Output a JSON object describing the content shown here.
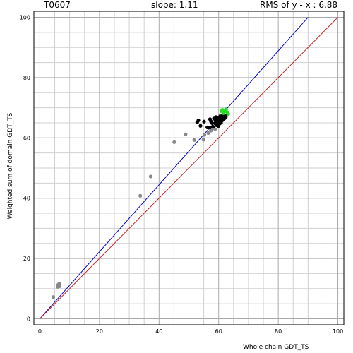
{
  "header": {
    "target": "T0607",
    "slope": "slope: 1.11",
    "rms": "RMS of  y - x : 6.88"
  },
  "chart_data": {
    "type": "scatter",
    "xlabel": "Whole chain GDT_TS",
    "ylabel": "Weighted sum of domain GDT_TS",
    "xlim": [
      -2,
      102
    ],
    "ylim": [
      -2,
      102
    ],
    "xticks": [
      0,
      20,
      40,
      60,
      80,
      100
    ],
    "yticks": [
      0,
      20,
      40,
      60,
      80,
      100
    ],
    "minor_step": 5,
    "grid": true,
    "lines": [
      {
        "name": "",
        "color": "#0000cc",
        "x": [
          0,
          90
        ],
        "y": [
          0,
          100
        ]
      },
      {
        "name": "",
        "color": "#cc2222",
        "x": [
          0,
          100
        ],
        "y": [
          0,
          100
        ]
      }
    ],
    "series": [
      {
        "name": "",
        "color": "#888888",
        "points": [
          [
            4.5,
            7.2
          ],
          [
            6.0,
            10.6
          ],
          [
            6.1,
            11.2
          ],
          [
            6.3,
            10.9
          ],
          [
            6.5,
            11.6
          ],
          [
            6.6,
            10.8
          ],
          [
            33.7,
            40.8
          ],
          [
            37.2,
            47.2
          ],
          [
            45.1,
            58.6
          ],
          [
            48.9,
            61.2
          ],
          [
            51.8,
            59.3
          ],
          [
            54.9,
            59.4
          ],
          [
            55.2,
            61.0
          ],
          [
            56.5,
            61.6
          ],
          [
            57.4,
            62.4
          ],
          [
            57.9,
            63.2
          ],
          [
            58.8,
            62.9
          ]
        ]
      },
      {
        "name": "",
        "color": "#000000",
        "points": [
          [
            52.8,
            65.2
          ],
          [
            53.2,
            65.8
          ],
          [
            53.9,
            64.0
          ],
          [
            55.1,
            65.4
          ],
          [
            56.2,
            63.5
          ],
          [
            57.0,
            63.4
          ],
          [
            57.1,
            66.2
          ],
          [
            57.4,
            65.5
          ],
          [
            57.8,
            64.9
          ],
          [
            58.1,
            63.7
          ],
          [
            58.4,
            66.4
          ],
          [
            58.8,
            64.8
          ],
          [
            59.0,
            65.6
          ],
          [
            59.1,
            66.9
          ],
          [
            59.3,
            64.2
          ],
          [
            59.5,
            65.1
          ],
          [
            59.7,
            66.0
          ],
          [
            59.9,
            63.9
          ],
          [
            60.0,
            66.6
          ],
          [
            60.2,
            64.6
          ],
          [
            60.3,
            65.5
          ],
          [
            60.5,
            67.2
          ],
          [
            60.6,
            66.3
          ],
          [
            60.8,
            65.0
          ],
          [
            61.0,
            66.8
          ],
          [
            61.2,
            65.8
          ],
          [
            61.4,
            67.5
          ],
          [
            61.6,
            66.1
          ],
          [
            61.8,
            67.0
          ],
          [
            62.0,
            66.5
          ],
          [
            62.2,
            67.4
          ],
          [
            62.4,
            66.9
          ]
        ]
      },
      {
        "name": "",
        "color": "#22dd22",
        "points": [
          [
            60.9,
            68.9
          ],
          [
            61.6,
            68.2
          ],
          [
            62.1,
            68.8
          ],
          [
            62.5,
            69.5
          ],
          [
            62.9,
            68.5
          ],
          [
            63.2,
            67.9
          ],
          [
            61.3,
            69.3
          ]
        ]
      }
    ]
  }
}
